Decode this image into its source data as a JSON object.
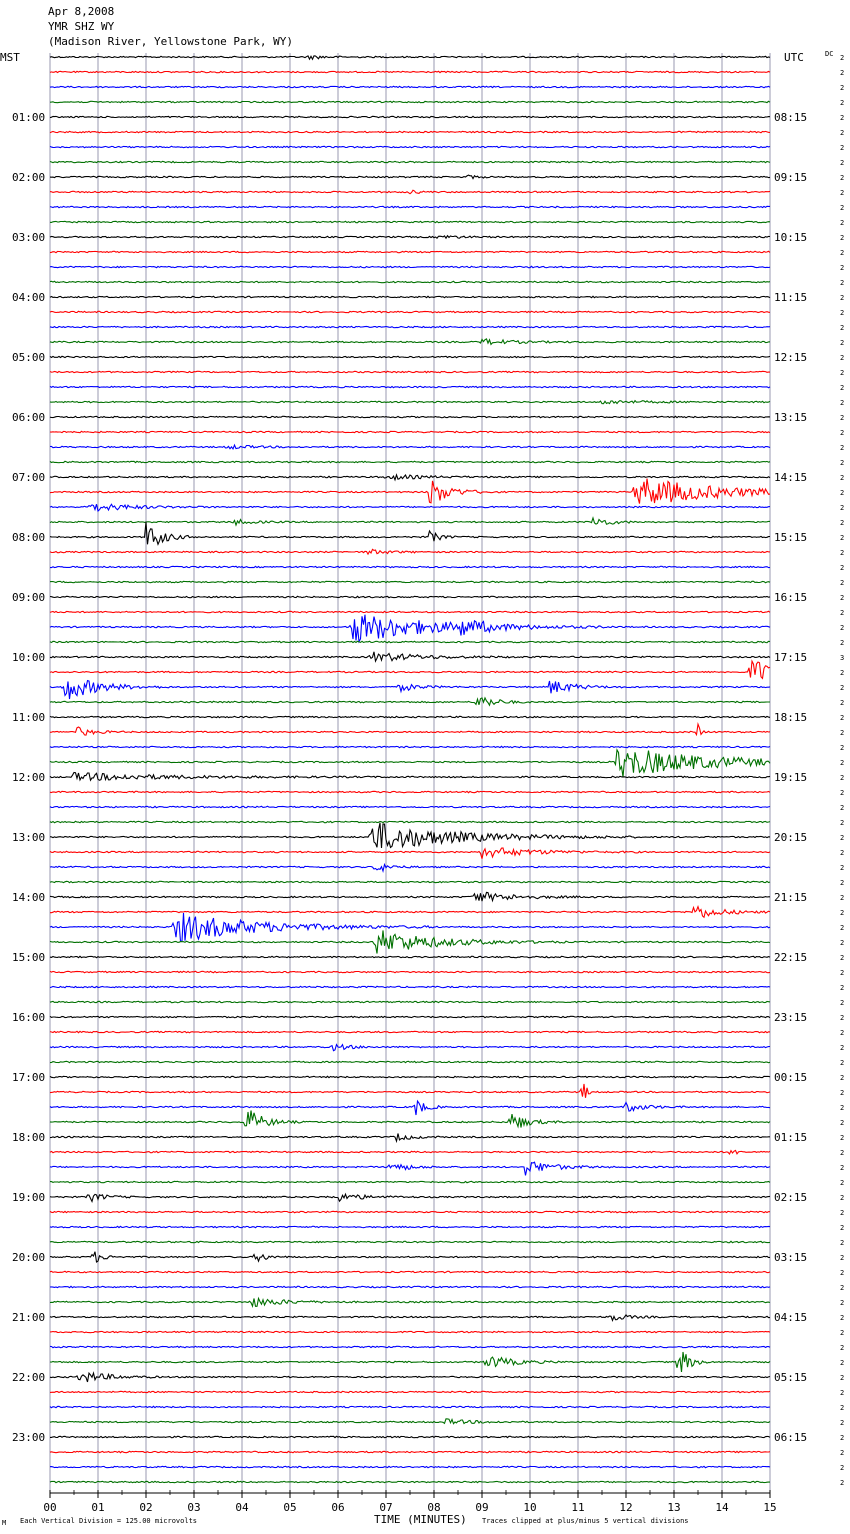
{
  "header": {
    "date": "Apr 8,2008",
    "station": "YMR SHZ WY",
    "location": "(Madison River, Yellowstone Park, WY)",
    "left_tz": "MST",
    "right_tz": "UTC",
    "dc_label": "DC"
  },
  "footer": {
    "scale_note": "Each Vertical Division =  125.00 microvolts",
    "xlabel": "TIME (MINUTES)",
    "clip_note": "Traces clipped at plus/minus 5 vertical divisions",
    "corner_mark": "M"
  },
  "chart_data": {
    "type": "line",
    "title": "YMR SHZ WY",
    "xlabel": "TIME (MINUTES)",
    "xlim": [
      0,
      15
    ],
    "x_ticks": [
      "00",
      "01",
      "02",
      "03",
      "04",
      "05",
      "06",
      "07",
      "08",
      "09",
      "10",
      "11",
      "12",
      "13",
      "14",
      "15"
    ],
    "trace_colors": [
      "#000000",
      "#ff0000",
      "#0000ff",
      "#007000"
    ],
    "traces_per_hour": 4,
    "left_hour_labels": [
      "01:00",
      "02:00",
      "03:00",
      "04:00",
      "05:00",
      "06:00",
      "07:00",
      "08:00",
      "09:00",
      "10:00",
      "11:00",
      "12:00",
      "13:00",
      "14:00",
      "15:00",
      "16:00",
      "17:00",
      "18:00",
      "19:00",
      "20:00",
      "21:00",
      "22:00",
      "23:00"
    ],
    "right_hour_labels": [
      "08:15",
      "09:15",
      "10:15",
      "11:15",
      "12:15",
      "13:15",
      "14:15",
      "15:15",
      "16:15",
      "17:15",
      "18:15",
      "19:15",
      "20:15",
      "21:15",
      "22:15",
      "23:15",
      "00:15",
      "01:15",
      "02:15",
      "03:15",
      "04:15",
      "05:15",
      "06:15"
    ],
    "dc_offsets": [
      "2",
      "2",
      "2",
      "2",
      "2",
      "2",
      "2",
      "2",
      "2",
      "2",
      "2",
      "2",
      "2",
      "2",
      "2",
      "2",
      "2",
      "2",
      "2",
      "2",
      "2",
      "2",
      "2",
      "2",
      "2",
      "2",
      "2",
      "2",
      "2",
      "2",
      "2",
      "2",
      "2",
      "2",
      "2",
      "2",
      "2",
      "2",
      "2",
      "2",
      "3",
      "2",
      "2",
      "2",
      "2",
      "2",
      "2",
      "2",
      "2",
      "2",
      "2",
      "2",
      "2",
      "2",
      "2",
      "2",
      "2",
      "2",
      "2",
      "2",
      "2",
      "2",
      "2",
      "2",
      "2",
      "2",
      "2",
      "2",
      "2",
      "2",
      "2",
      "2",
      "2",
      "2",
      "2",
      "2",
      "2",
      "2",
      "2",
      "2",
      "2",
      "2",
      "2",
      "2",
      "2",
      "2",
      "2",
      "2",
      "2",
      "2",
      "2",
      "2",
      "2",
      "2",
      "2",
      "2"
    ],
    "events": [
      {
        "trace": 0,
        "t": 5.4,
        "amp": 2,
        "dur": 0.5
      },
      {
        "trace": 8,
        "t": 8.7,
        "amp": 2,
        "dur": 0.3
      },
      {
        "trace": 9,
        "t": 7.5,
        "amp": 2,
        "dur": 0.3
      },
      {
        "trace": 12,
        "t": 8.1,
        "amp": 2,
        "dur": 0.6
      },
      {
        "trace": 19,
        "t": 9.0,
        "amp": 3,
        "dur": 1.0
      },
      {
        "trace": 23,
        "t": 11.5,
        "amp": 2,
        "dur": 1.2
      },
      {
        "trace": 26,
        "t": 3.7,
        "amp": 2,
        "dur": 0.8
      },
      {
        "trace": 28,
        "t": 7.0,
        "amp": 3,
        "dur": 1.0
      },
      {
        "trace": 29,
        "t": 7.9,
        "amp": 16,
        "dur": 0.6
      },
      {
        "trace": 29,
        "t": 12.2,
        "amp": 16,
        "dur": 2.5
      },
      {
        "trace": 30,
        "t": 0.8,
        "amp": 5,
        "dur": 1.2
      },
      {
        "trace": 31,
        "t": 11.3,
        "amp": 6,
        "dur": 0.5
      },
      {
        "trace": 31,
        "t": 3.8,
        "amp": 3,
        "dur": 0.6
      },
      {
        "trace": 32,
        "t": 2.0,
        "amp": 16,
        "dur": 0.5
      },
      {
        "trace": 32,
        "t": 7.9,
        "amp": 7,
        "dur": 0.3
      },
      {
        "trace": 33,
        "t": 6.6,
        "amp": 3,
        "dur": 0.6
      },
      {
        "trace": 38,
        "t": 6.3,
        "amp": 16,
        "dur": 2.5
      },
      {
        "trace": 38,
        "t": 8.5,
        "amp": 7,
        "dur": 0.8
      },
      {
        "trace": 40,
        "t": 6.7,
        "amp": 5,
        "dur": 1.5
      },
      {
        "trace": 41,
        "t": 14.6,
        "amp": 16,
        "dur": 0.8
      },
      {
        "trace": 42,
        "t": 0.3,
        "amp": 14,
        "dur": 1.0
      },
      {
        "trace": 42,
        "t": 10.4,
        "amp": 8,
        "dur": 0.7
      },
      {
        "trace": 42,
        "t": 7.3,
        "amp": 4,
        "dur": 0.6
      },
      {
        "trace": 43,
        "t": 8.9,
        "amp": 9,
        "dur": 0.5
      },
      {
        "trace": 45,
        "t": 0.5,
        "amp": 6,
        "dur": 0.5
      },
      {
        "trace": 45,
        "t": 13.5,
        "amp": 8,
        "dur": 0.1
      },
      {
        "trace": 47,
        "t": 11.8,
        "amp": 16,
        "dur": 3.0
      },
      {
        "trace": 48,
        "t": 0.5,
        "amp": 4,
        "dur": 3.0
      },
      {
        "trace": 52,
        "t": 6.7,
        "amp": 16,
        "dur": 2.5
      },
      {
        "trace": 53,
        "t": 9.0,
        "amp": 6,
        "dur": 1.5
      },
      {
        "trace": 54,
        "t": 6.8,
        "amp": 6,
        "dur": 0.4
      },
      {
        "trace": 56,
        "t": 8.8,
        "amp": 6,
        "dur": 1.2
      },
      {
        "trace": 57,
        "t": 13.4,
        "amp": 8,
        "dur": 0.8
      },
      {
        "trace": 58,
        "t": 2.6,
        "amp": 16,
        "dur": 2.5
      },
      {
        "trace": 59,
        "t": 6.8,
        "amp": 13,
        "dur": 1.8
      },
      {
        "trace": 66,
        "t": 5.9,
        "amp": 4,
        "dur": 0.5
      },
      {
        "trace": 69,
        "t": 11.1,
        "amp": 16,
        "dur": 0.1
      },
      {
        "trace": 70,
        "t": 7.6,
        "amp": 10,
        "dur": 0.3
      },
      {
        "trace": 70,
        "t": 12.0,
        "amp": 5,
        "dur": 0.6
      },
      {
        "trace": 71,
        "t": 4.1,
        "amp": 15,
        "dur": 0.5
      },
      {
        "trace": 71,
        "t": 9.6,
        "amp": 10,
        "dur": 0.5
      },
      {
        "trace": 72,
        "t": 7.2,
        "amp": 4,
        "dur": 0.5
      },
      {
        "trace": 73,
        "t": 14.2,
        "amp": 8,
        "dur": 0.1
      },
      {
        "trace": 74,
        "t": 7.1,
        "amp": 6,
        "dur": 0.5
      },
      {
        "trace": 74,
        "t": 9.9,
        "amp": 8,
        "dur": 0.8
      },
      {
        "trace": 76,
        "t": 5.9,
        "amp": 5,
        "dur": 0.8
      },
      {
        "trace": 76,
        "t": 0.8,
        "amp": 5,
        "dur": 0.5
      },
      {
        "trace": 80,
        "t": 0.9,
        "amp": 7,
        "dur": 0.3
      },
      {
        "trace": 80,
        "t": 4.3,
        "amp": 6,
        "dur": 0.3
      },
      {
        "trace": 83,
        "t": 4.2,
        "amp": 5,
        "dur": 1.0
      },
      {
        "trace": 84,
        "t": 11.7,
        "amp": 4,
        "dur": 0.5
      },
      {
        "trace": 87,
        "t": 9.1,
        "amp": 7,
        "dur": 0.8
      },
      {
        "trace": 87,
        "t": 13.1,
        "amp": 18,
        "dur": 0.3
      },
      {
        "trace": 88,
        "t": 0.6,
        "amp": 7,
        "dur": 0.8
      },
      {
        "trace": 91,
        "t": 8.2,
        "amp": 3,
        "dur": 0.8
      }
    ]
  }
}
